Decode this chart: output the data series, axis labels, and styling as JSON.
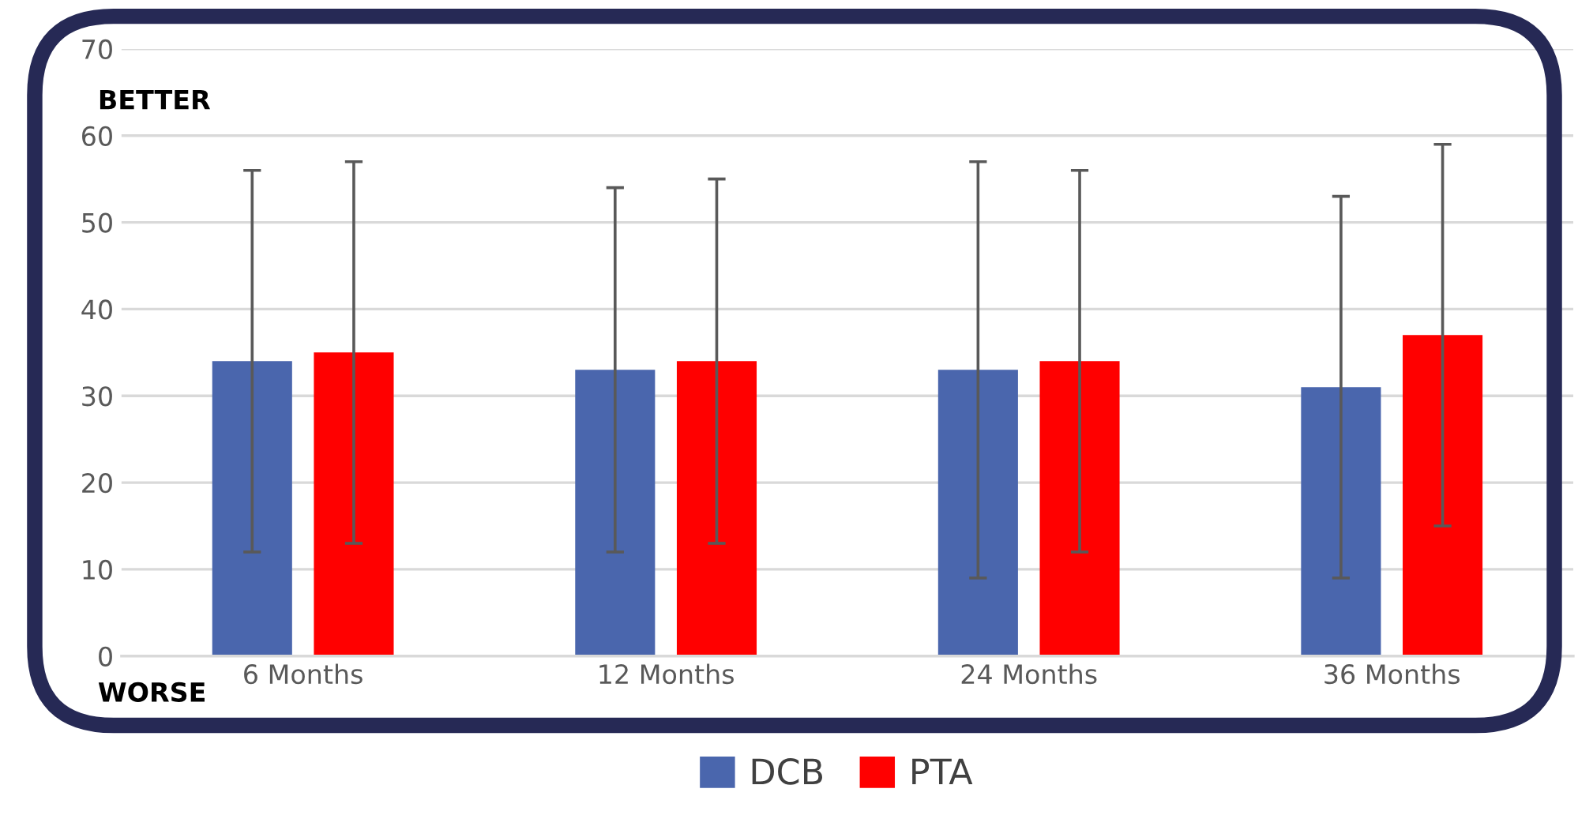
{
  "chart_data": {
    "type": "bar",
    "categories": [
      "6 Months",
      "12 Months",
      "24 Months",
      "36 Months"
    ],
    "series": [
      {
        "name": "DCB",
        "color": "#4a66ad",
        "values": [
          34,
          33,
          33,
          31
        ],
        "errors": [
          22,
          21,
          24,
          22
        ]
      },
      {
        "name": "PTA",
        "color": "#ff0000",
        "values": [
          35,
          34,
          34,
          37
        ],
        "errors": [
          22,
          21,
          22,
          22
        ]
      }
    ],
    "ylim": [
      0,
      70
    ],
    "yticks": [
      0,
      10,
      20,
      30,
      40,
      50,
      60,
      70
    ],
    "annotations": [
      "BETTER",
      "WORSE"
    ],
    "grid": "y",
    "legend": "bottom"
  }
}
